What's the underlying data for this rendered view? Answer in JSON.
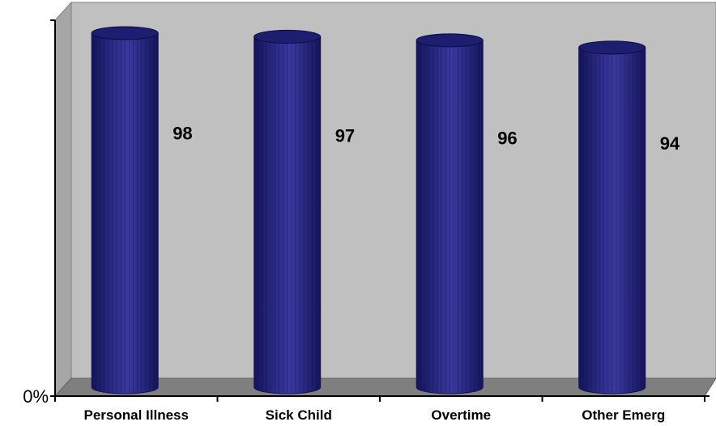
{
  "chart_data": {
    "type": "bar",
    "style": "3d-cylinder",
    "categories": [
      "Personal Illness",
      "Sick Child",
      "Overtime",
      "Other Emerg"
    ],
    "values": [
      98,
      97,
      96,
      94
    ],
    "data_labels": [
      "98",
      "97",
      "96",
      "94"
    ],
    "y_tick_labels": [
      "0%"
    ],
    "ylim": [
      0,
      100
    ],
    "title": "",
    "xlabel": "",
    "ylabel": "",
    "grid": false,
    "legend": "none",
    "colors": {
      "bar": "#2e2e8c",
      "bar_top": "#1e1e70",
      "bar_dark": "#14145a",
      "back_wall": "#c0c0c0",
      "floor": "#7f7f7f",
      "axis": "#000000"
    }
  }
}
